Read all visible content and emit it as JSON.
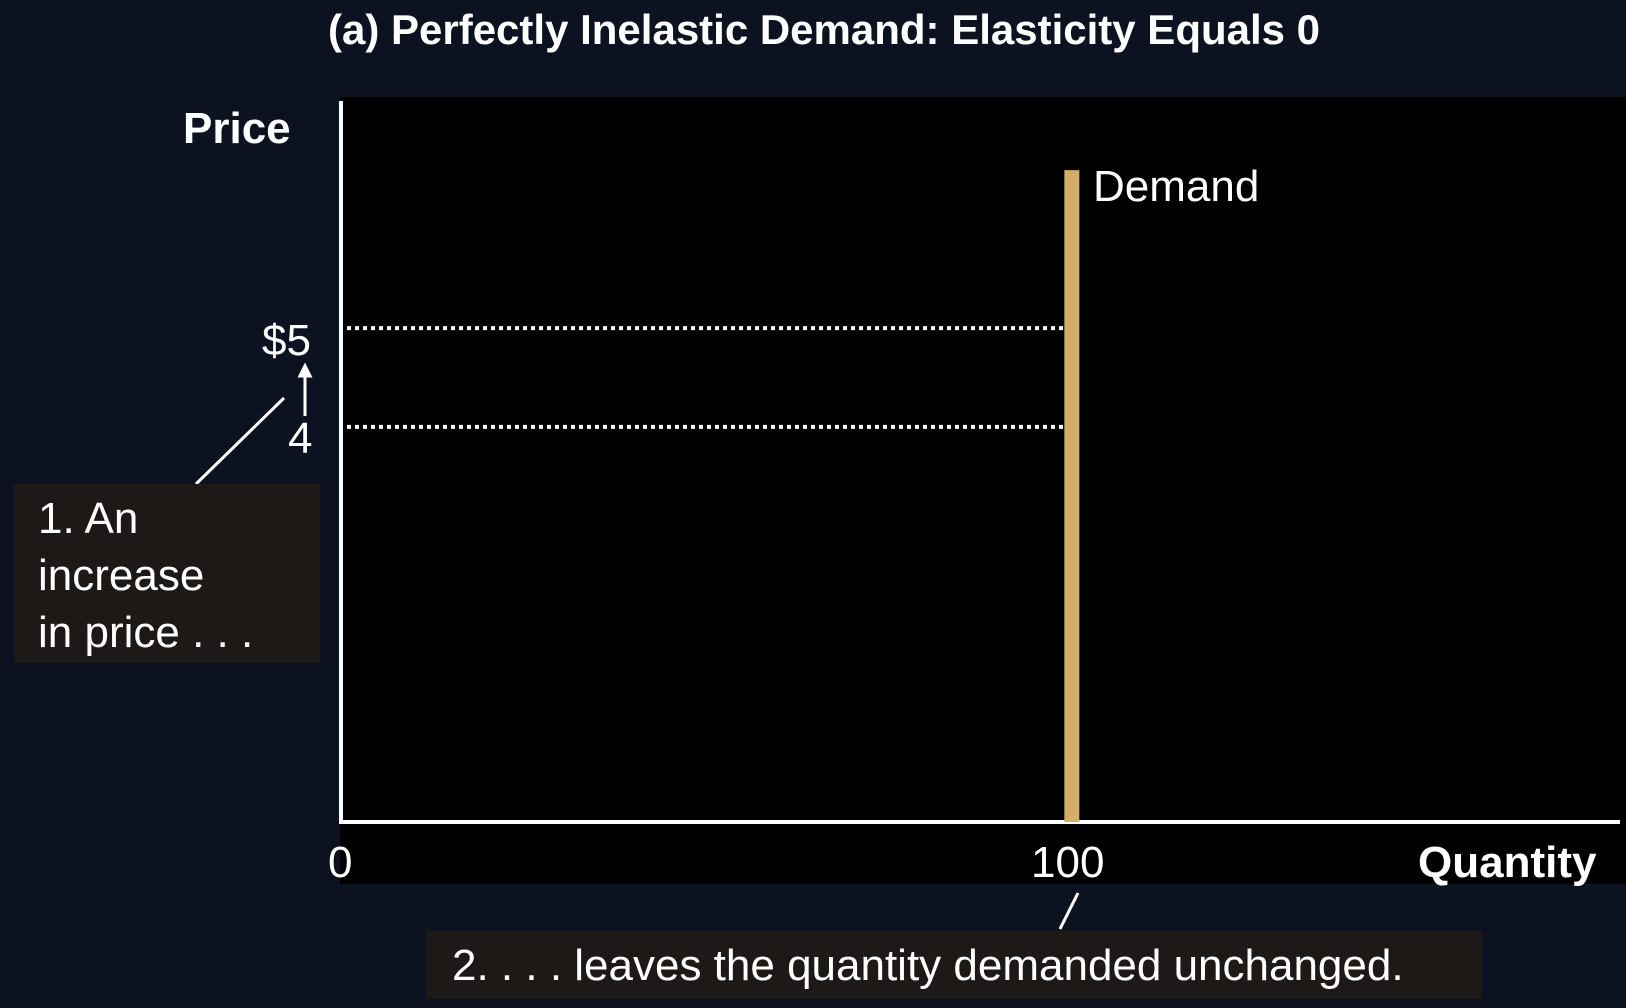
{
  "chart_data": {
    "type": "line",
    "title": "(a) Perfectly Inelastic Demand: Elasticity Equals 0",
    "xlabel": "Quantity",
    "ylabel": "Price",
    "x_origin_label": "0",
    "x_ticks": [
      {
        "value": 100,
        "label": "100"
      }
    ],
    "y_ticks": [
      {
        "value": 5,
        "label": "$5"
      },
      {
        "value": 4,
        "label": "4"
      }
    ],
    "xlim": [
      0,
      175
    ],
    "ylim": [
      0,
      7.3
    ],
    "grid": false,
    "series": [
      {
        "name": "Demand",
        "color": "#d4ad68",
        "points": [
          {
            "x": 100,
            "y": 0
          },
          {
            "x": 100,
            "y": 6.6
          }
        ]
      }
    ],
    "reference_lines": [
      {
        "y": 5,
        "x_end": 100,
        "style": "dotted"
      },
      {
        "y": 4,
        "x_end": 100,
        "style": "dotted"
      }
    ],
    "annotations": [
      {
        "id": "price_change",
        "text": "1. An\nincrease\nin price . . ."
      },
      {
        "id": "quantity_unchanged",
        "text": "2. . . . leaves the quantity demanded unchanged."
      }
    ]
  },
  "colors": {
    "background": "#0d1220",
    "plot_area": "#000000",
    "axis": "#ffffff",
    "demand": "#d4ad68",
    "note_box": "#1c1916"
  }
}
